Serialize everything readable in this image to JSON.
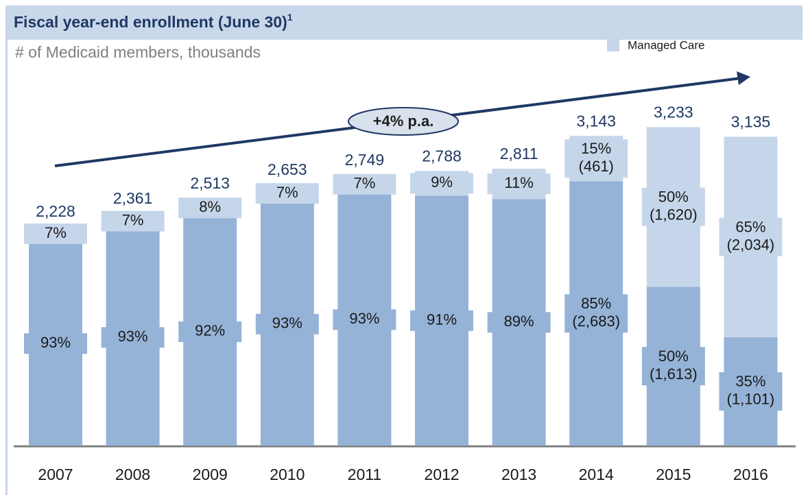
{
  "chart_data": {
    "type": "stacked_bar",
    "title": "Fiscal year-end enrollment (June 30)",
    "title_footnote": "1",
    "subtitle": "# of Medicaid members, thousands",
    "annotation": "+4% p.a.",
    "categories": [
      "2007",
      "2008",
      "2009",
      "2010",
      "2011",
      "2012",
      "2013",
      "2014",
      "2015",
      "2016"
    ],
    "series": [
      {
        "color": "#95b3d7",
        "values": [
          2072,
          2196,
          2312,
          2467,
          2557,
          2537,
          2502,
          2683,
          1613,
          1101
        ],
        "shares": [
          "93%",
          "93%",
          "92%",
          "93%",
          "93%",
          "91%",
          "89%",
          "85%",
          "50%",
          "35%"
        ],
        "value_labels": [
          null,
          null,
          null,
          null,
          null,
          null,
          null,
          "(2,683)",
          "(1,613)",
          "(1,101)"
        ]
      },
      {
        "name": "Managed Care",
        "color": "#c6d6ea",
        "values": [
          156,
          165,
          201,
          186,
          192,
          251,
          309,
          461,
          1620,
          2034
        ],
        "shares": [
          "7%",
          "7%",
          "8%",
          "7%",
          "7%",
          "9%",
          "11%",
          "15%",
          "50%",
          "65%"
        ],
        "value_labels": [
          null,
          null,
          null,
          null,
          null,
          null,
          null,
          "(461)",
          "(1,620)",
          "(2,034)"
        ]
      }
    ],
    "totals": [
      2228,
      2361,
      2513,
      2653,
      2749,
      2788,
      2811,
      3143,
      3233,
      3135
    ],
    "total_labels": [
      "2,228",
      "2,361",
      "2,513",
      "2,653",
      "2,749",
      "2,788",
      "2,811",
      "3,143",
      "3,233",
      "3,135"
    ],
    "ylim": [
      0,
      3500
    ],
    "legend": "top-right"
  }
}
